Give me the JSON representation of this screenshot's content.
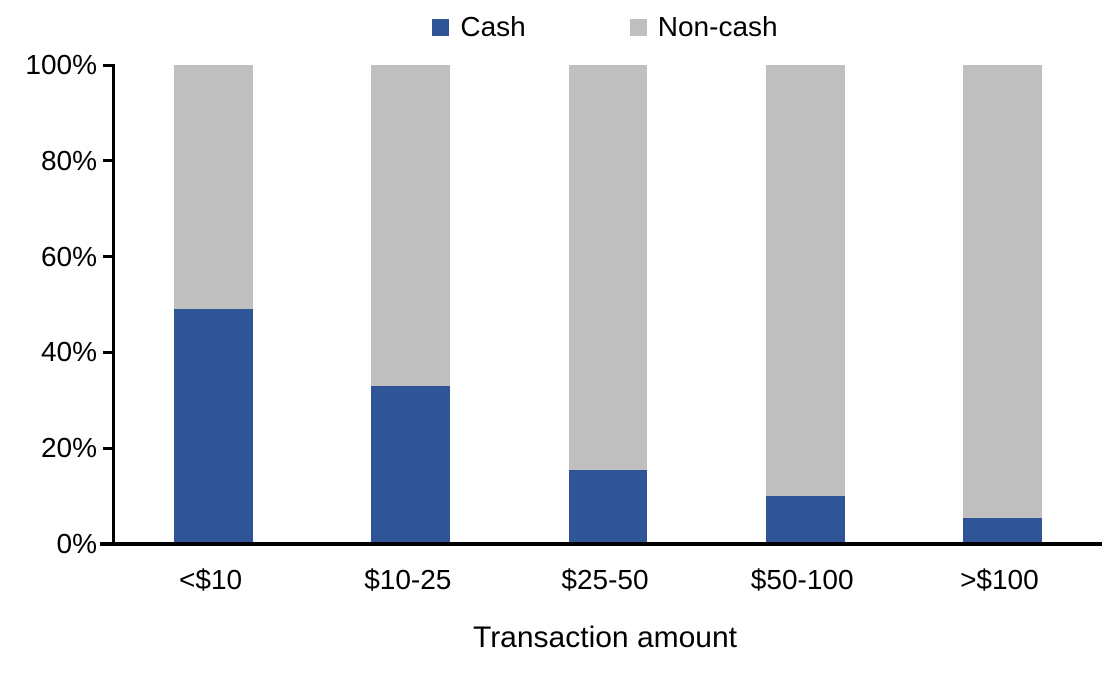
{
  "chart_data": {
    "type": "bar",
    "subtype": "stacked-100-percent",
    "title": "",
    "xlabel": "Transaction amount",
    "ylabel": "",
    "categories": [
      "<$10",
      "$10-25",
      "$25-50",
      "$50-100",
      ">$100"
    ],
    "series": [
      {
        "name": "Cash",
        "color": "#2F5597",
        "values": [
          49,
          33,
          15.5,
          10,
          5.5
        ]
      },
      {
        "name": "Non-cash",
        "color": "#BFBFBF",
        "values": [
          51,
          67,
          84.5,
          90,
          94.5
        ]
      }
    ],
    "y_ticks": [
      {
        "label": "0%",
        "value": 0
      },
      {
        "label": "20%",
        "value": 20
      },
      {
        "label": "40%",
        "value": 40
      },
      {
        "label": "60%",
        "value": 60
      },
      {
        "label": "80%",
        "value": 80
      },
      {
        "label": "100%",
        "value": 100
      }
    ],
    "ylim": [
      0,
      100
    ],
    "legend_position": "top-center",
    "grid": false,
    "axis_color": "#000000",
    "background_color": "#FFFFFF"
  }
}
